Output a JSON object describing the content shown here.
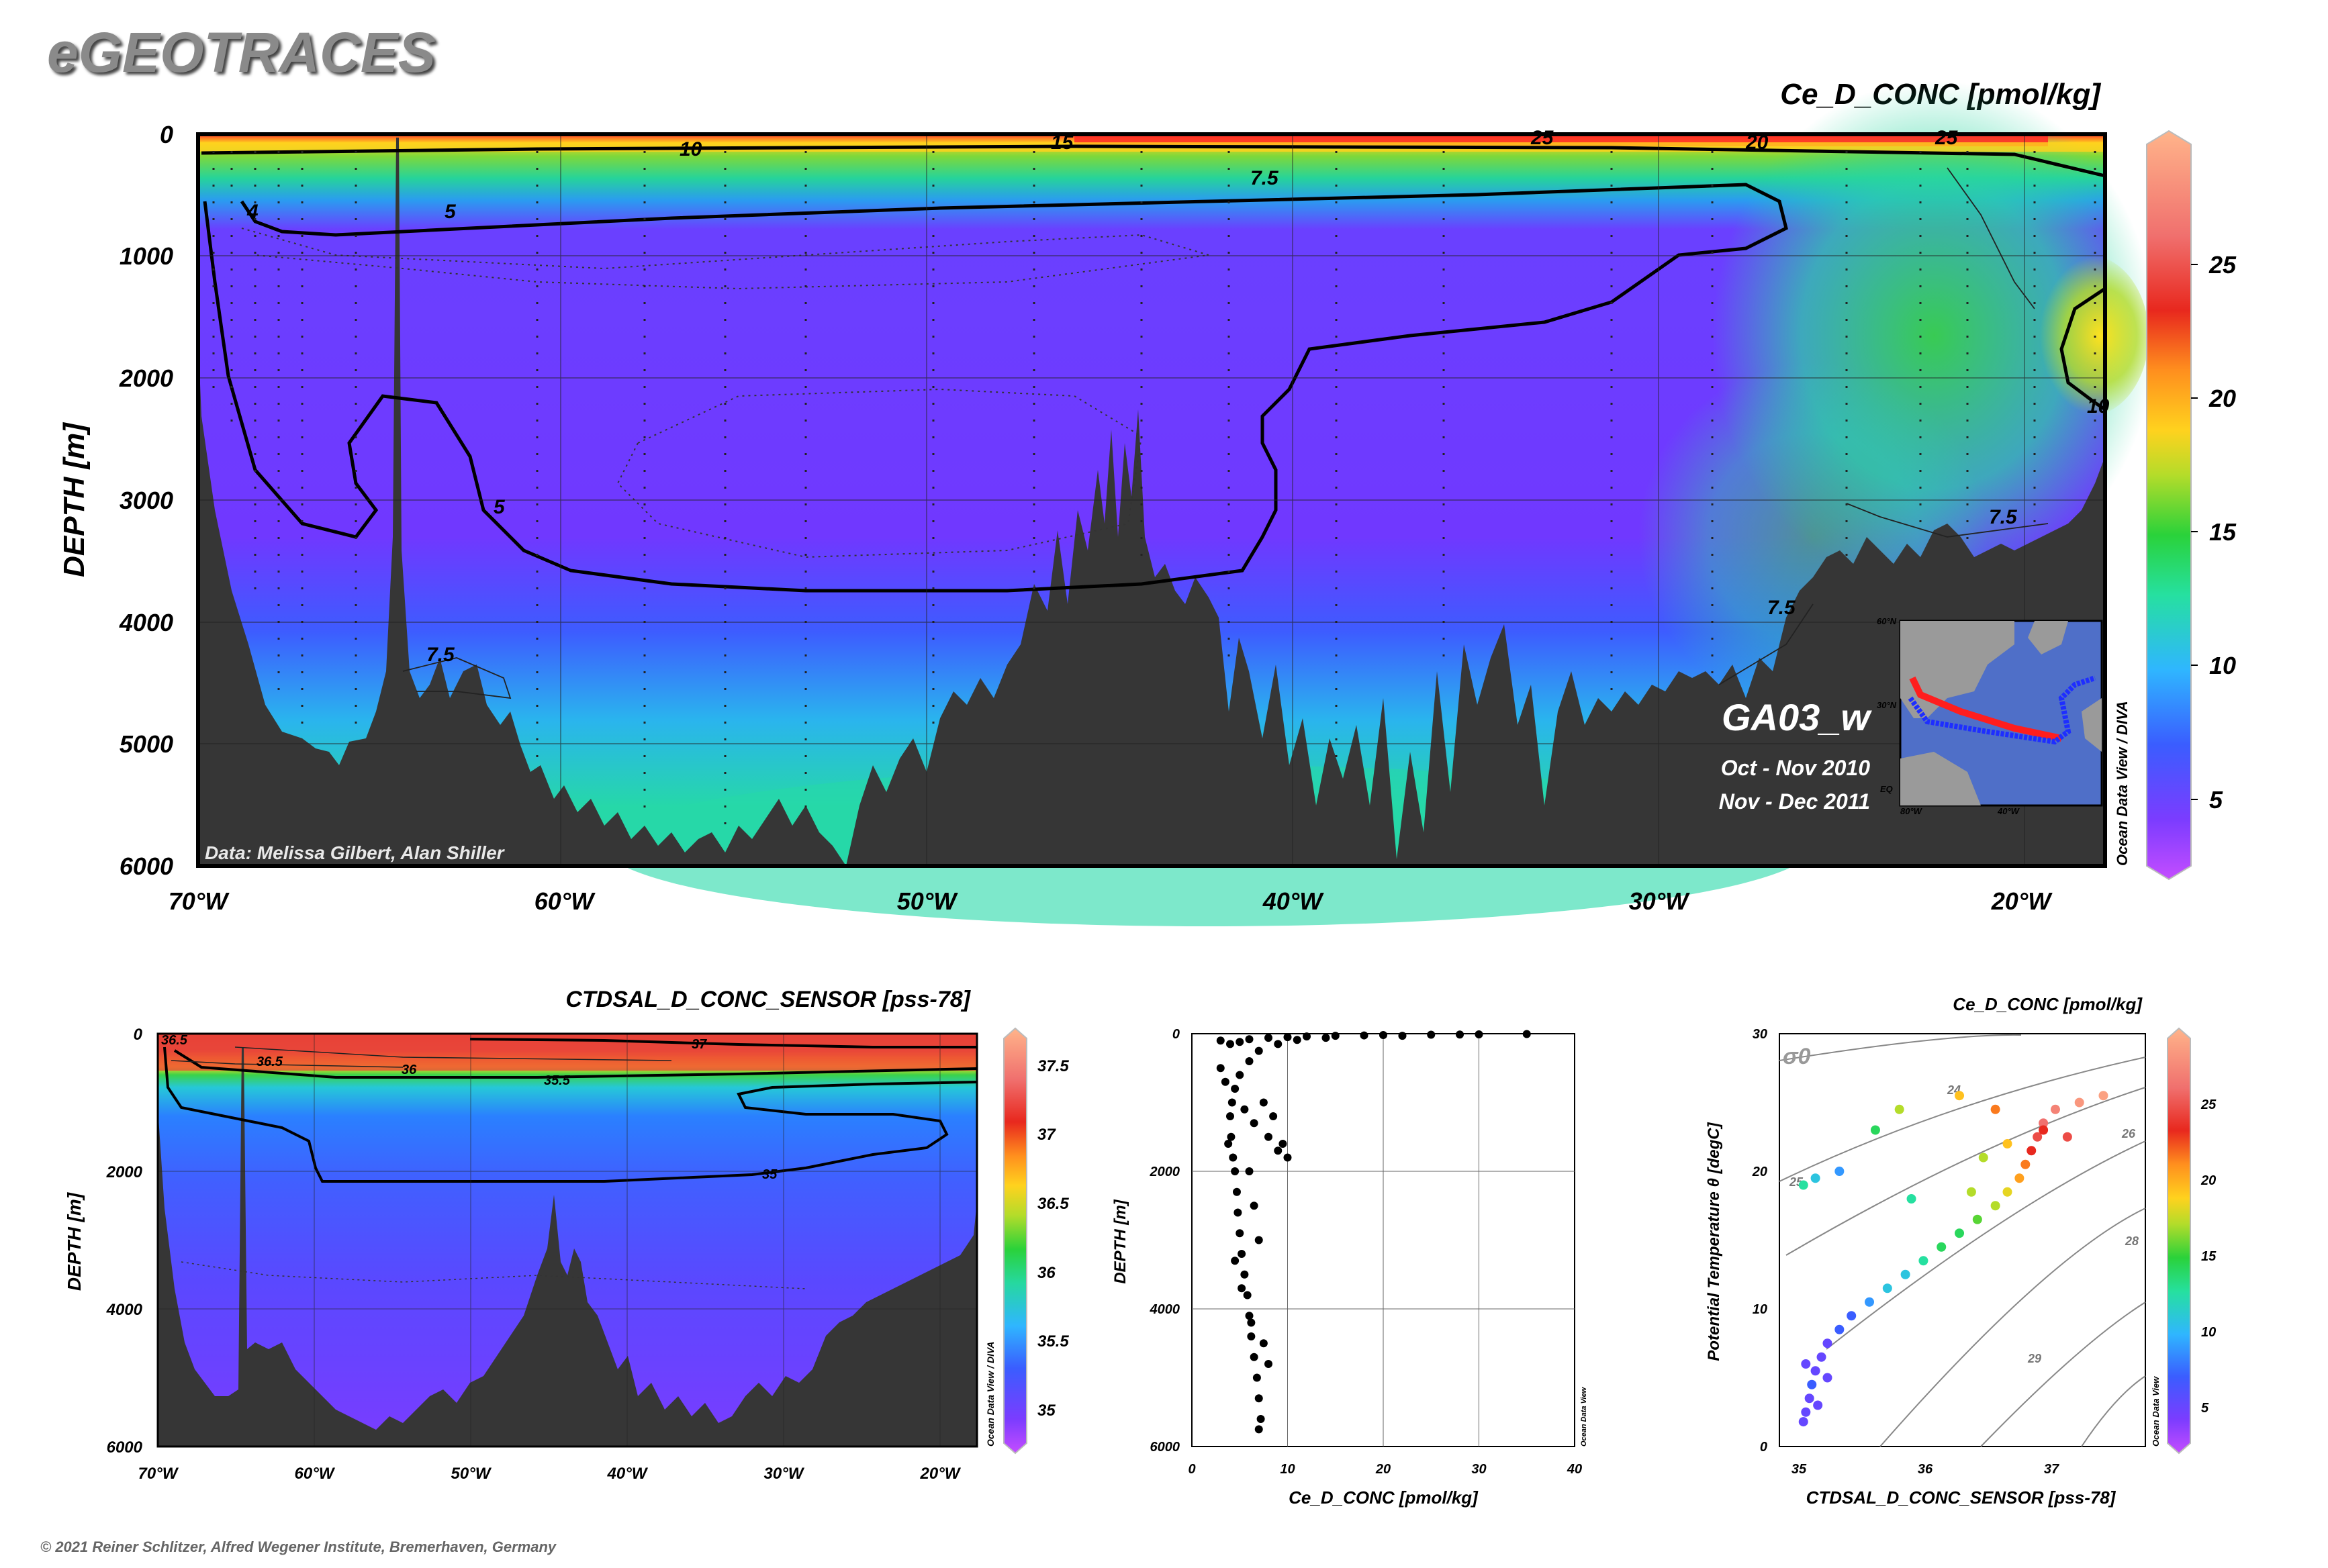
{
  "header": {
    "logo": "eGEOTRACES"
  },
  "footer": {
    "copyright": "© 2021 Reiner Schlitzer, Alfred Wegener Institute, Bremerhaven, Germany"
  },
  "main_section": {
    "title": "Ce_D_CONC [pmol/kg]",
    "ylabel": "DEPTH [m]",
    "y_ticks": [
      "0",
      "1000",
      "2000",
      "3000",
      "4000",
      "5000",
      "6000"
    ],
    "x_ticks": [
      "70°W",
      "60°W",
      "50°W",
      "40°W",
      "30°W",
      "20°W"
    ],
    "data_credit": "Data: Melissa Gilbert, Alan Shiller",
    "cruise": "GA03_w",
    "dates": [
      "Oct - Nov 2010",
      "Nov - Dec 2011"
    ],
    "watermark": "Ocean Data View / DIVA",
    "contour_labels": [
      "4",
      "5",
      "5",
      "7.5",
      "7.5",
      "7.5",
      "7.5",
      "10",
      "10",
      "15",
      "20",
      "25",
      "25"
    ],
    "colorbar_ticks": [
      "5",
      "10",
      "15",
      "20",
      "25"
    ],
    "inset_map": {
      "lat_labels": [
        "60°N",
        "30°N",
        "EQ"
      ],
      "lon_labels": [
        "80°W",
        "40°W"
      ]
    }
  },
  "salinity_section": {
    "title": "CTDSAL_D_CONC_SENSOR [pss-78]",
    "ylabel": "DEPTH [m]",
    "y_ticks": [
      "0",
      "2000",
      "4000",
      "6000"
    ],
    "x_ticks": [
      "70°W",
      "60°W",
      "50°W",
      "40°W",
      "30°W",
      "20°W"
    ],
    "contour_labels": [
      "35",
      "35.5",
      "36",
      "36.5",
      "36.5",
      "37"
    ],
    "colorbar_ticks": [
      "35",
      "35.5",
      "36",
      "36.5",
      "37",
      "37.5"
    ],
    "watermark": "Ocean Data View / DIVA"
  },
  "profile_plot": {
    "xlabel": "Ce_D_CONC [pmol/kg]",
    "ylabel": "DEPTH [m]",
    "x_ticks": [
      "0",
      "10",
      "20",
      "30",
      "40"
    ],
    "y_ticks": [
      "0",
      "2000",
      "4000",
      "6000"
    ],
    "watermark": "Ocean Data View"
  },
  "ts_plot": {
    "title": "Ce_D_CONC [pmol/kg]",
    "xlabel": "CTDSAL_D_CONC_SENSOR [pss-78]",
    "ylabel": "Potential Temperature θ [degC]",
    "x_ticks": [
      "35",
      "36",
      "37"
    ],
    "y_ticks": [
      "0",
      "10",
      "20",
      "30"
    ],
    "sigma_label": "σ0",
    "isopycnal_labels": [
      "24",
      "25",
      "26",
      "28",
      "29"
    ],
    "colorbar_ticks": [
      "5",
      "10",
      "15",
      "20",
      "25"
    ],
    "watermark": "Ocean Data View"
  },
  "chart_data": [
    {
      "type": "heatmap",
      "title": "Ce_D_CONC [pmol/kg]",
      "xlabel": "",
      "ylabel": "DEPTH [m]",
      "xlim": [
        -70,
        -17
      ],
      "ylim": [
        6000,
        0
      ],
      "colorbar": {
        "min": 2.5,
        "max": 29,
        "ticks": [
          5,
          10,
          15,
          20,
          25
        ]
      },
      "contour_levels": [
        4,
        5,
        7.5,
        10,
        15,
        20,
        25
      ],
      "approx_values": {
        "surface_0_200m": "10-25",
        "intermediate_500_4000m_west": "4-5",
        "deep_east_of_35W": "7.5-10",
        "bottom_water": "7.5"
      },
      "grid": true
    },
    {
      "type": "heatmap",
      "title": "CTDSAL_D_CONC_SENSOR [pss-78]",
      "ylabel": "DEPTH [m]",
      "xlim": [
        -70,
        -17
      ],
      "ylim": [
        6000,
        0
      ],
      "colorbar": {
        "min": 34.8,
        "max": 37.8,
        "ticks": [
          35,
          35.5,
          36,
          36.5,
          37,
          37.5
        ]
      },
      "contour_levels": [
        35,
        35.5,
        36,
        36.5,
        37
      ],
      "grid": true
    },
    {
      "type": "scatter",
      "xlabel": "Ce_D_CONC [pmol/kg]",
      "ylabel": "DEPTH [m]",
      "xlim": [
        0,
        40
      ],
      "ylim": [
        6000,
        0
      ],
      "series": [
        {
          "points": [
            [
              3,
              100
            ],
            [
              4,
              150
            ],
            [
              5,
              120
            ],
            [
              6,
              80
            ],
            [
              8,
              60
            ],
            [
              10,
              50
            ],
            [
              12,
              40
            ],
            [
              15,
              30
            ],
            [
              20,
              20
            ],
            [
              25,
              15
            ],
            [
              30,
              10
            ],
            [
              35,
              5
            ],
            [
              18,
              25
            ],
            [
              22,
              30
            ],
            [
              28,
              12
            ],
            [
              14,
              60
            ],
            [
              11,
              90
            ],
            [
              9,
              150
            ],
            [
              7,
              250
            ],
            [
              6,
              400
            ],
            [
              5,
              600
            ],
            [
              4.5,
              800
            ],
            [
              4.2,
              1000
            ],
            [
              4,
              1200
            ],
            [
              4.1,
              1500
            ],
            [
              4.3,
              1800
            ],
            [
              4.5,
              2000
            ],
            [
              4.7,
              2300
            ],
            [
              4.8,
              2600
            ],
            [
              5,
              2900
            ],
            [
              5.2,
              3200
            ],
            [
              5.5,
              3500
            ],
            [
              5.8,
              3800
            ],
            [
              6,
              4100
            ],
            [
              6.2,
              4400
            ],
            [
              6.5,
              4700
            ],
            [
              6.8,
              5000
            ],
            [
              7,
              5300
            ],
            [
              7.2,
              5600
            ],
            [
              7,
              5750
            ],
            [
              8,
              1500
            ],
            [
              9,
              1700
            ],
            [
              10,
              1800
            ],
            [
              7.5,
              1000
            ],
            [
              8.5,
              1200
            ],
            [
              9.5,
              1600
            ],
            [
              6,
              2000
            ],
            [
              6.5,
              2500
            ],
            [
              7,
              3000
            ],
            [
              3.5,
              700
            ],
            [
              3,
              500
            ],
            [
              5.5,
              1100
            ],
            [
              6.5,
              1300
            ],
            [
              3.8,
              1600
            ],
            [
              4.5,
              3300
            ],
            [
              5.2,
              3700
            ],
            [
              6.2,
              4200
            ],
            [
              7.5,
              4500
            ],
            [
              8,
              4800
            ]
          ]
        }
      ],
      "grid": true
    },
    {
      "type": "scatter",
      "title": "Ce_D_CONC [pmol/kg]",
      "xlabel": "CTDSAL_D_CONC_SENSOR [pss-78]",
      "ylabel": "Potential Temperature θ [degC]",
      "xlim": [
        34.7,
        37.75
      ],
      "ylim": [
        0,
        30
      ],
      "colorbar": {
        "min": 2.5,
        "max": 29,
        "ticks": [
          5,
          10,
          15,
          20,
          25
        ]
      },
      "series": [
        {
          "points": [
            [
              34.9,
              1.8,
              5
            ],
            [
              34.92,
              2.5,
              5
            ],
            [
              34.95,
              3.5,
              5
            ],
            [
              34.97,
              4.5,
              6
            ],
            [
              35.0,
              5.5,
              5
            ],
            [
              35.05,
              6.5,
              5
            ],
            [
              35.1,
              7.5,
              5
            ],
            [
              35.2,
              8.5,
              6
            ],
            [
              35.3,
              9.5,
              6
            ],
            [
              35.45,
              10.5,
              7
            ],
            [
              35.6,
              11.5,
              8
            ],
            [
              35.75,
              12.5,
              8
            ],
            [
              35.9,
              13.5,
              9
            ],
            [
              36.05,
              14.5,
              10
            ],
            [
              36.2,
              15.5,
              10
            ],
            [
              36.35,
              16.5,
              11
            ],
            [
              36.5,
              17.5,
              12
            ],
            [
              36.6,
              18.5,
              13
            ],
            [
              36.7,
              19.5,
              15
            ],
            [
              36.75,
              20.5,
              16
            ],
            [
              36.8,
              21.5,
              18
            ],
            [
              36.85,
              22.5,
              20
            ],
            [
              36.9,
              23.5,
              22
            ],
            [
              37.0,
              24.5,
              24
            ],
            [
              37.2,
              25,
              26
            ],
            [
              37.4,
              25.5,
              27
            ],
            [
              35.5,
              23,
              10
            ],
            [
              35.7,
              24.5,
              12
            ],
            [
              36.2,
              25.5,
              14
            ],
            [
              36.5,
              24.5,
              16
            ],
            [
              36.9,
              23,
              18
            ],
            [
              37.1,
              22.5,
              20
            ],
            [
              35.0,
              19.5,
              8
            ],
            [
              34.9,
              19,
              9
            ],
            [
              35.2,
              20,
              7
            ],
            [
              35.8,
              18,
              9
            ],
            [
              36.4,
              21,
              12
            ],
            [
              36.6,
              22,
              14
            ],
            [
              36.3,
              18.5,
              12
            ],
            [
              34.92,
              6,
              5
            ],
            [
              35.1,
              5,
              5
            ],
            [
              35.02,
              3,
              5
            ]
          ]
        }
      ],
      "grid": false
    }
  ]
}
